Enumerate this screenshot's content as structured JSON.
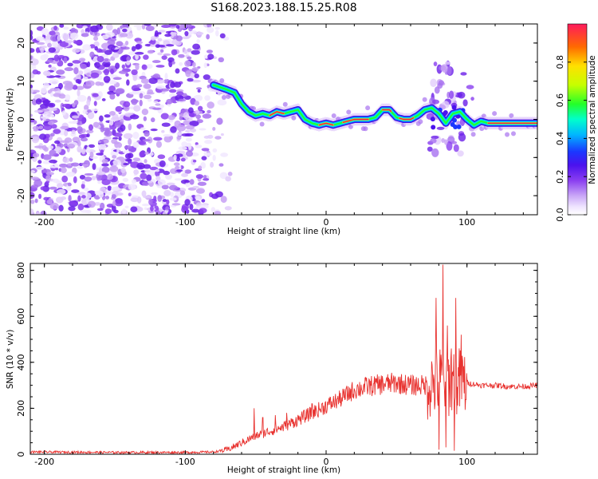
{
  "title": "S168.2023.188.15.25.R08",
  "colors": {
    "ridge_core": "#e8174e",
    "snr_line": "#e8322f",
    "colormap": [
      "#ffffff",
      "#f0e6ff",
      "#c9a6f7",
      "#8a3ef0",
      "#4b12ee",
      "#1b37ff",
      "#00b7ff",
      "#00ffcc",
      "#23ff2a",
      "#c6ff00",
      "#ffe000",
      "#ff6a00",
      "#ff1a5c"
    ]
  },
  "chart_data": [
    {
      "type": "heatmap",
      "title": "S168.2023.188.15.25.R08",
      "xlabel": "Height of straight line (km)",
      "ylabel": "Frequency (Hz)",
      "xlim": [
        -210,
        150
      ],
      "ylim": [
        -25,
        25
      ],
      "xticks": [
        -200,
        -100,
        0,
        100
      ],
      "yticks": [
        -20,
        -10,
        0,
        10,
        20
      ],
      "colorbar": {
        "label": "Normalized spectral amplitude",
        "range": [
          0,
          1
        ],
        "ticks": [
          "0.0",
          "0.2",
          "0.4",
          "0.6",
          "0.8"
        ]
      },
      "noise_region_x": [
        -210,
        -70
      ],
      "ridge": {
        "x": [
          -80,
          -72,
          -65,
          -60,
          -55,
          -50,
          -45,
          -40,
          -35,
          -30,
          -25,
          -20,
          -15,
          -10,
          -5,
          0,
          5,
          10,
          15,
          20,
          25,
          30,
          35,
          40,
          45,
          50,
          55,
          60,
          65,
          70,
          75,
          80,
          85,
          90,
          95,
          100,
          105,
          110,
          115,
          120,
          130,
          140,
          150
        ],
        "frequency": [
          9,
          8,
          7,
          4,
          2,
          1,
          1.5,
          1,
          2,
          1.5,
          2,
          2.5,
          0,
          -1,
          -1.5,
          -1,
          -1.5,
          -1,
          -0.5,
          0,
          0,
          0,
          0.5,
          2.5,
          2.5,
          0.5,
          0,
          0,
          1,
          2.5,
          3,
          1.5,
          -1,
          1.5,
          2,
          0,
          -1.5,
          -0.5,
          -1,
          -1,
          -1,
          -1,
          -1
        ]
      }
    },
    {
      "type": "line",
      "xlabel": "Height of straight line (km)",
      "ylabel": "SNR (10 * v/v)",
      "xlim": [
        -210,
        150
      ],
      "ylim": [
        0,
        830
      ],
      "xticks": [
        -200,
        -100,
        0,
        100
      ],
      "yticks": [
        0,
        200,
        400,
        600,
        800
      ],
      "trend": {
        "x": [
          -210,
          -150,
          -100,
          -80,
          -70,
          -60,
          -50,
          -40,
          -30,
          -20,
          -10,
          0,
          10,
          20,
          30,
          40,
          50,
          60,
          70,
          75,
          80,
          85,
          90,
          95,
          100,
          110,
          120,
          130,
          140,
          150
        ],
        "snr": [
          10,
          8,
          8,
          10,
          20,
          50,
          80,
          100,
          120,
          150,
          180,
          210,
          240,
          280,
          295,
          305,
          310,
          300,
          300,
          310,
          320,
          320,
          320,
          310,
          310,
          300,
          300,
          295,
          295,
          300
        ]
      },
      "spikes": [
        {
          "x": -51,
          "snr": 200
        },
        {
          "x": -45,
          "snr": 160
        },
        {
          "x": -36,
          "snr": 170
        },
        {
          "x": -28,
          "snr": 180
        },
        {
          "x": -10,
          "snr": 220
        },
        {
          "x": 78,
          "snr": 680
        },
        {
          "x": 83,
          "snr": 825
        },
        {
          "x": 86,
          "snr": 560
        },
        {
          "x": 89,
          "snr": 460
        },
        {
          "x": 92,
          "snr": 680
        },
        {
          "x": 96,
          "snr": 520
        },
        {
          "x": 80,
          "snr": 20
        },
        {
          "x": 85,
          "snr": 30
        },
        {
          "x": 91,
          "snr": 15
        }
      ]
    }
  ]
}
